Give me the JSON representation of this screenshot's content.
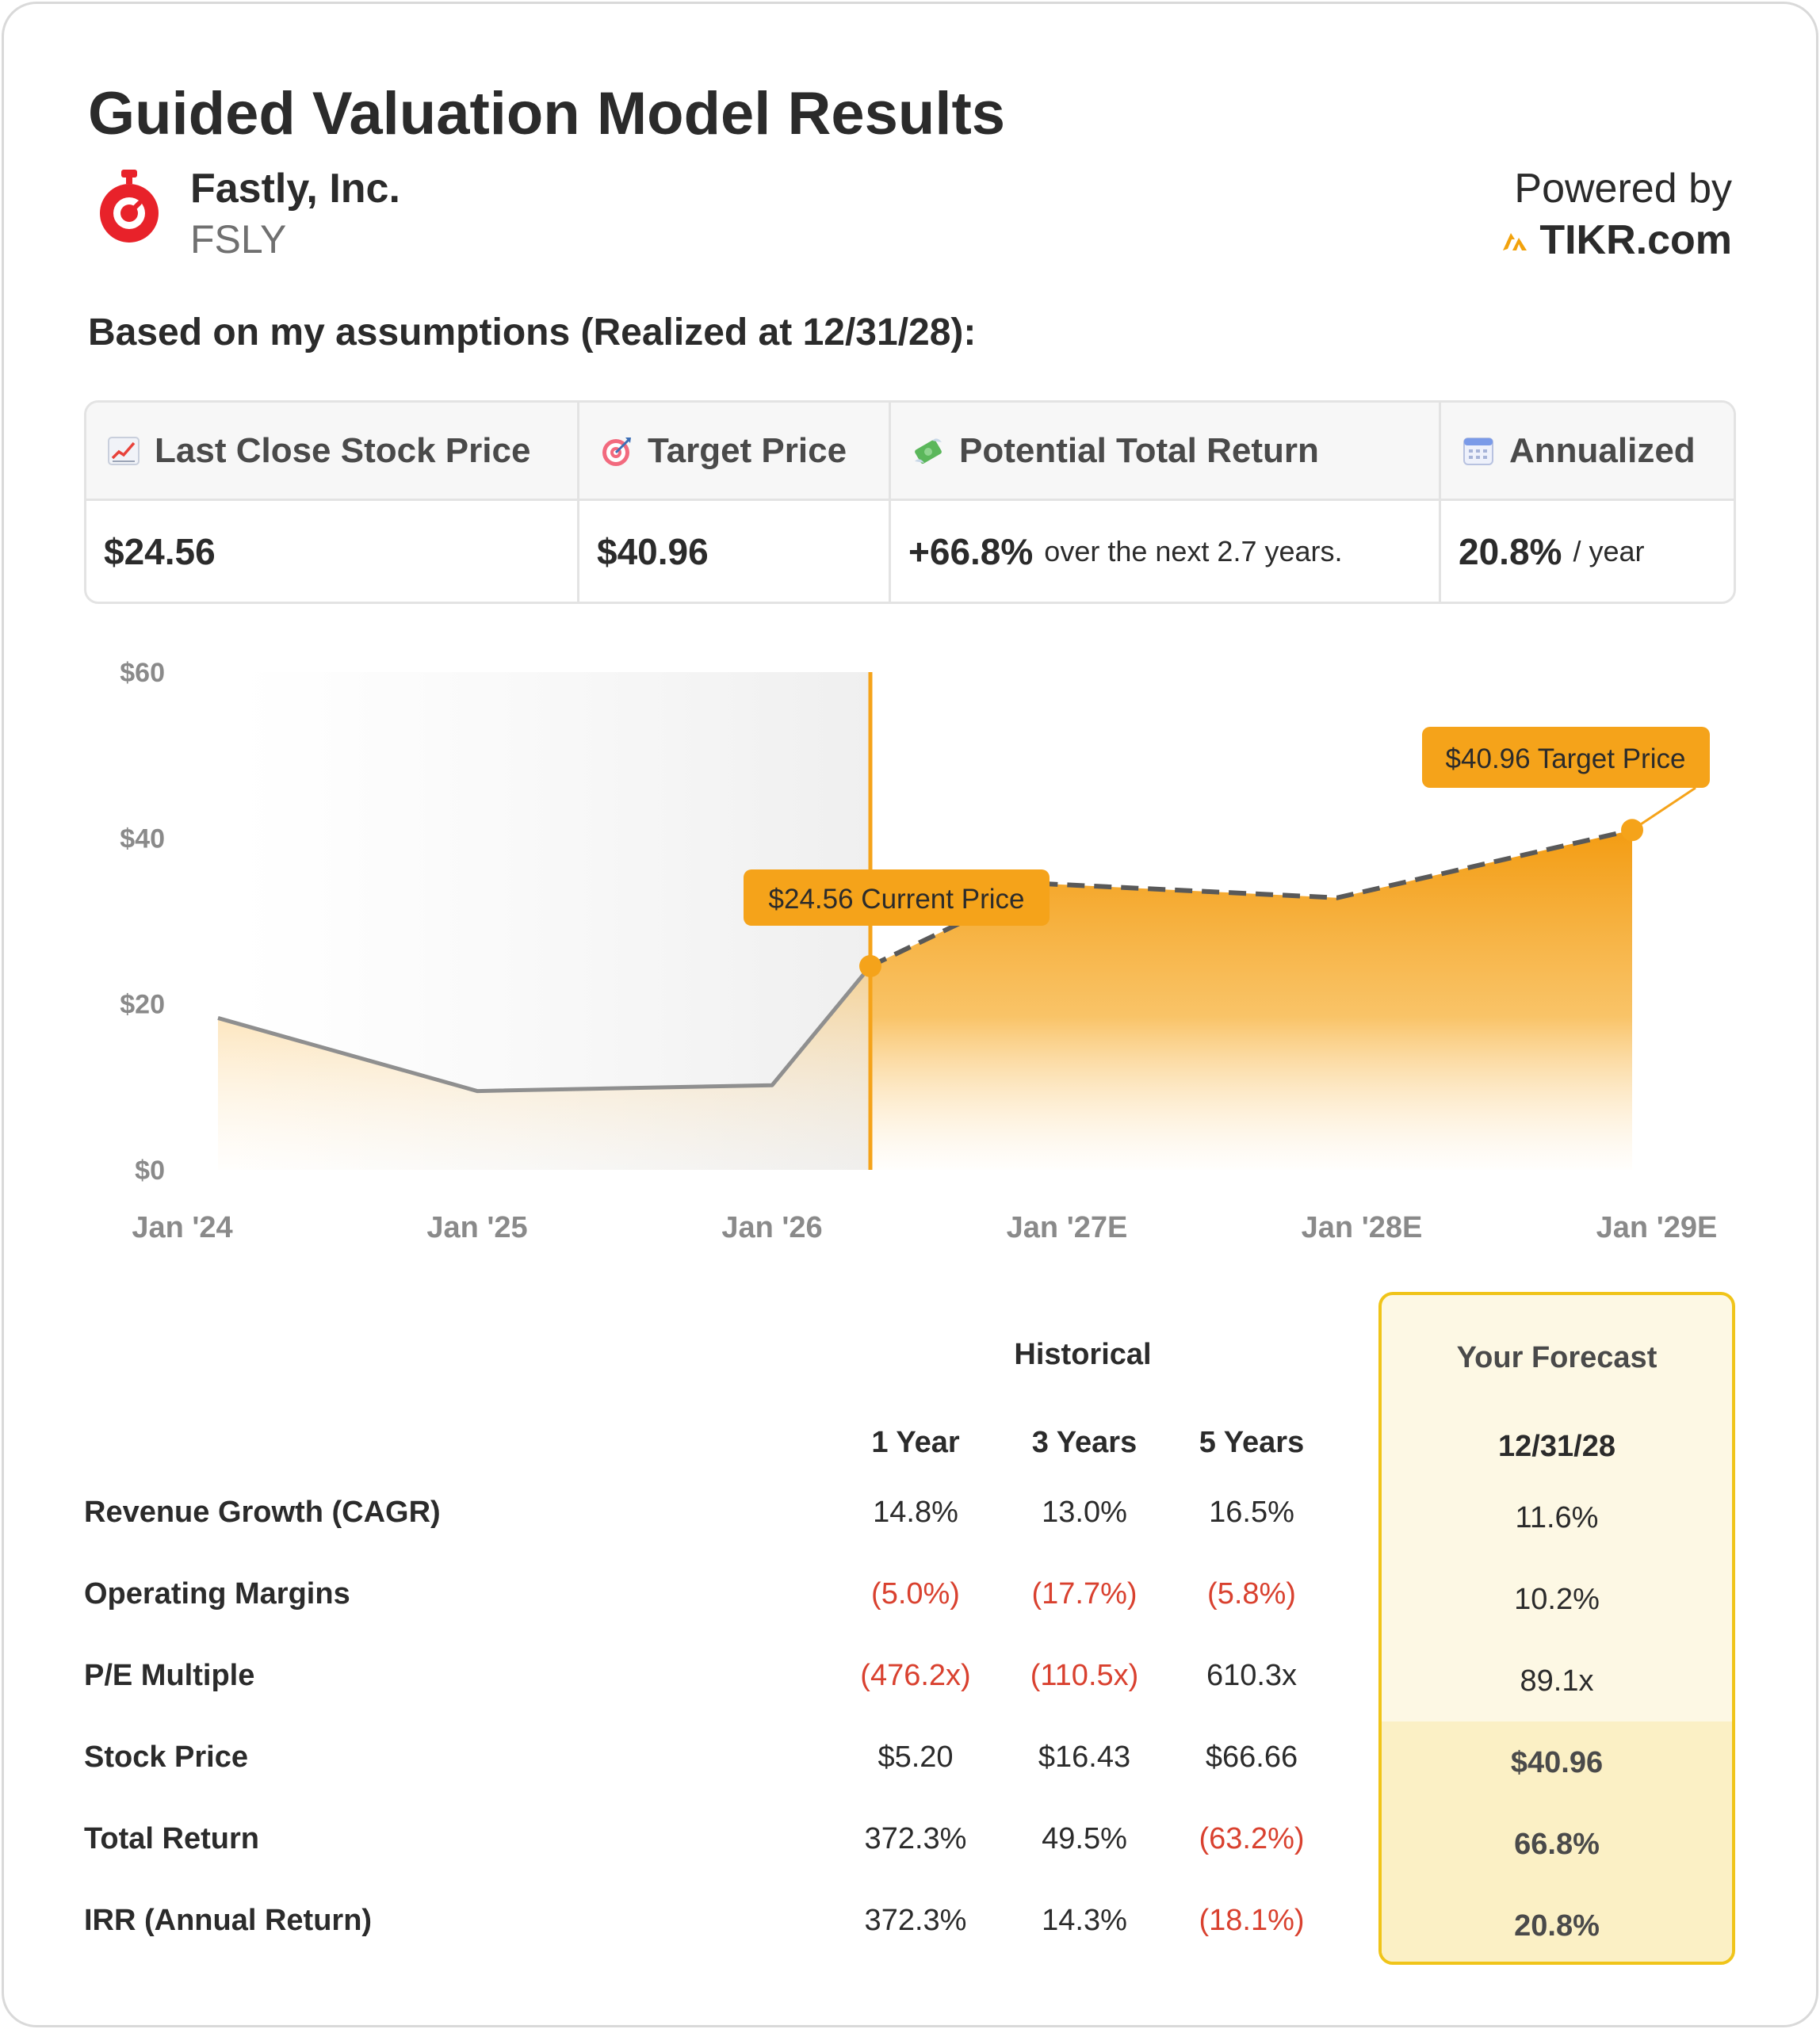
{
  "header": {
    "title": "Guided Valuation Model Results",
    "company_name": "Fastly, Inc.",
    "ticker": "FSLY",
    "powered_by": "Powered by",
    "brand": "TIKR.com"
  },
  "assumptions_text": "Based on my assumptions (Realized at 12/31/28):",
  "summary": {
    "last_close_label": "Last Close Stock Price",
    "last_close_value": "$24.56",
    "target_label": "Target Price",
    "target_value": "$40.96",
    "return_label": "Potential Total Return",
    "return_value": "+66.8%",
    "return_note": "over the next 2.7 years.",
    "annualized_label": "Annualized",
    "annualized_value": "20.8%",
    "annualized_note": "/ year"
  },
  "chart_data": {
    "type": "area",
    "y_ticks": [
      "$0",
      "$20",
      "$40",
      "$60"
    ],
    "ylim": [
      0,
      60
    ],
    "x_ticks": [
      "Jan '24",
      "Jan '25",
      "Jan '26",
      "Jan '27E",
      "Jan '28E",
      "Jan '29E"
    ],
    "historical": [
      {
        "x": "2024-01",
        "y": 18.3
      },
      {
        "x": "2025-01",
        "y": 9.5
      },
      {
        "x": "2026-01",
        "y": 10.2
      },
      {
        "x": "2026-05",
        "y": 24.56
      }
    ],
    "forecast": [
      {
        "x": "2026-05",
        "y": 24.56
      },
      {
        "x": "2026-12",
        "y": 34.5
      },
      {
        "x": "2027-12",
        "y": 32.8
      },
      {
        "x": "2028-12",
        "y": 40.96
      }
    ],
    "current_label": "$24.56 Current Price",
    "target_label": "$40.96 Target Price",
    "colors": {
      "accent": "#f5a31a",
      "historical_line": "#8f8f8f",
      "forecast_line": "#595959"
    }
  },
  "table": {
    "historical_header": "Historical",
    "forecast_header": "Your Forecast",
    "col_headers": [
      "1 Year",
      "3 Years",
      "5 Years"
    ],
    "forecast_col": "12/31/28",
    "rows": [
      {
        "label": "Revenue Growth (CAGR)",
        "values": [
          "14.8%",
          "13.0%",
          "16.5%"
        ],
        "forecast": "11.6%"
      },
      {
        "label": "Operating Margins",
        "values": [
          "(5.0%)",
          "(17.7%)",
          "(5.8%)"
        ],
        "forecast": "10.2%"
      },
      {
        "label": "P/E Multiple",
        "values": [
          "(476.2x)",
          "(110.5x)",
          "610.3x"
        ],
        "forecast": "89.1x"
      },
      {
        "label": "Stock Price",
        "values": [
          "$5.20",
          "$16.43",
          "$66.66"
        ],
        "forecast": "$40.96"
      },
      {
        "label": "Total Return",
        "values": [
          "372.3%",
          "49.5%",
          "(63.2%)"
        ],
        "forecast": "66.8%"
      },
      {
        "label": "IRR (Annual Return)",
        "values": [
          "372.3%",
          "14.3%",
          "(18.1%)"
        ],
        "forecast": "20.8%"
      }
    ]
  }
}
